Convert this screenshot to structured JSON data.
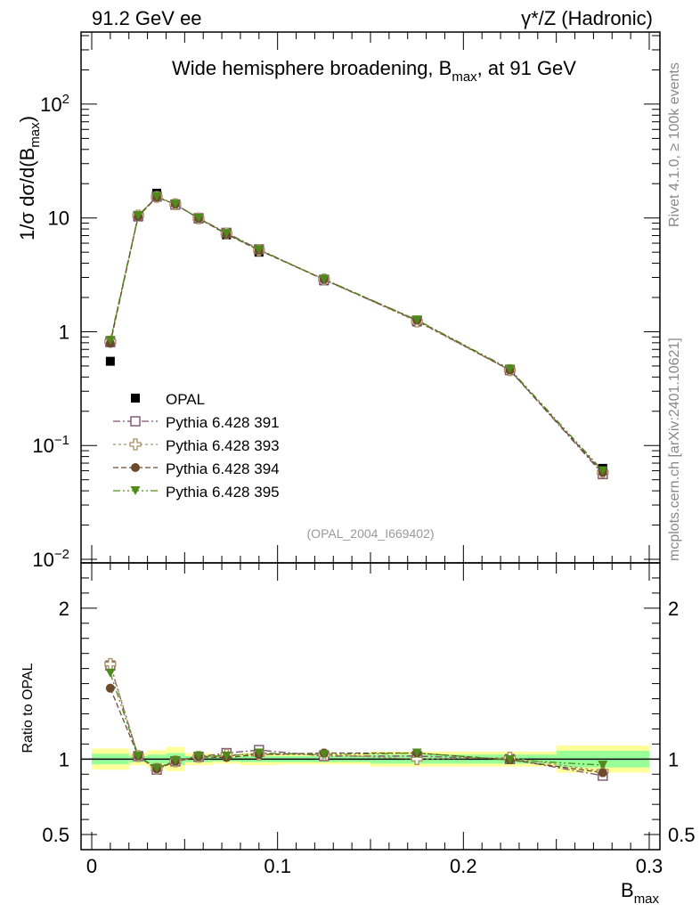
{
  "header": {
    "left": "91.2 GeV ee",
    "right": "γ*/Z (Hadronic)"
  },
  "side_text": {
    "rivet": "Rivet 4.1.0, ≥ 100k events",
    "mcplots": "mcplots.cern.ch [arXiv:2401.10621]"
  },
  "chart_data": {
    "type": "line",
    "title": "Wide hemisphere broadening, B_max, at 91 GeV",
    "title_parts": {
      "main": "Wide hemisphere broadening, B",
      "sub": "max",
      "tail": ", at 91 GeV"
    },
    "analysis_label": "(OPAL_2004_I669402)",
    "xlabel": {
      "main": "B",
      "sub": "max"
    },
    "ylabel": {
      "prefix": "1/σ   dσ/d(B",
      "sub": "max",
      "suffix": ")"
    },
    "ratio_ylabel": "Ratio to OPAL",
    "xlim": [
      0,
      0.3
    ],
    "ylim_log": [
      0.01,
      400
    ],
    "ratio_ylim": [
      0.4,
      2.3
    ],
    "x_ticks": [
      "0",
      "0.1",
      "0.2",
      "0.3"
    ],
    "y_ticks": [
      {
        "base": "10",
        "exp": "−2"
      },
      {
        "base": "10",
        "exp": "−1"
      },
      {
        "base": "1",
        "exp": ""
      },
      {
        "base": "10",
        "exp": ""
      },
      {
        "base": "10",
        "exp": "2"
      }
    ],
    "ratio_ticks": [
      "0.5",
      "1",
      "2"
    ],
    "x": [
      0.01,
      0.025,
      0.035,
      0.045,
      0.0575,
      0.0725,
      0.09,
      0.125,
      0.175,
      0.225,
      0.275
    ],
    "bin_edges": [
      0.0,
      0.02,
      0.03,
      0.04,
      0.05,
      0.065,
      0.08,
      0.1,
      0.15,
      0.2,
      0.25,
      0.3
    ],
    "reference": {
      "name": "OPAL",
      "values": [
        0.55,
        10.2,
        16.5,
        13.3,
        9.8,
        7.1,
        5.0,
        2.8,
        1.22,
        0.46,
        0.063
      ],
      "band_inner": [
        0.035,
        0.02,
        0.03,
        0.04,
        0.02,
        0.015,
        0.02,
        0.02,
        0.03,
        0.03,
        0.055
      ],
      "band_outer": [
        0.07,
        0.04,
        0.06,
        0.08,
        0.04,
        0.03,
        0.04,
        0.035,
        0.05,
        0.05,
        0.09
      ]
    },
    "series": [
      {
        "name": "Pythia 6.428 391",
        "color": "#7f4f6f",
        "marker": "open-square",
        "dash": "8,3,2,3",
        "values": [
          0.81,
          10.4,
          15.4,
          13.1,
          9.95,
          7.4,
          5.3,
          2.86,
          1.25,
          0.46,
          0.056
        ],
        "ratio": [
          1.62,
          1.02,
          0.93,
          0.985,
          1.015,
          1.04,
          1.06,
          1.02,
          1.02,
          1.0,
          0.89
        ]
      },
      {
        "name": "Pythia 6.428 393",
        "color": "#a89060",
        "marker": "open-cross",
        "dash": "3,3",
        "values": [
          0.82,
          10.5,
          15.3,
          13.2,
          9.9,
          7.3,
          5.2,
          2.88,
          1.23,
          0.46,
          0.058
        ],
        "ratio": [
          1.63,
          1.02,
          0.935,
          0.985,
          1.015,
          1.03,
          1.03,
          1.03,
          1.0,
          1.01,
          0.92
        ]
      },
      {
        "name": "Pythia 6.428 394",
        "color": "#6b4a2e",
        "marker": "filled-circle",
        "dash": "6,3",
        "values": [
          0.79,
          10.3,
          15.2,
          13.2,
          9.9,
          7.2,
          5.2,
          2.88,
          1.26,
          0.46,
          0.058
        ],
        "ratio": [
          1.47,
          1.02,
          0.935,
          0.985,
          1.015,
          1.01,
          1.03,
          1.04,
          1.04,
          0.995,
          0.91
        ]
      },
      {
        "name": "Pythia 6.428 395",
        "color": "#4f8a1a",
        "marker": "filled-down-triangle",
        "dash": "8,3,2,3,2,3",
        "values": [
          0.84,
          10.5,
          15.4,
          13.2,
          9.95,
          7.3,
          5.25,
          2.9,
          1.27,
          0.47,
          0.06
        ],
        "ratio": [
          1.57,
          1.02,
          0.94,
          0.99,
          1.02,
          1.02,
          1.04,
          1.03,
          1.04,
          0.995,
          0.96
        ]
      }
    ],
    "colors": {
      "band_inner": "#99ff99",
      "band_outer": "#ffff99",
      "reference": "#000000"
    }
  }
}
